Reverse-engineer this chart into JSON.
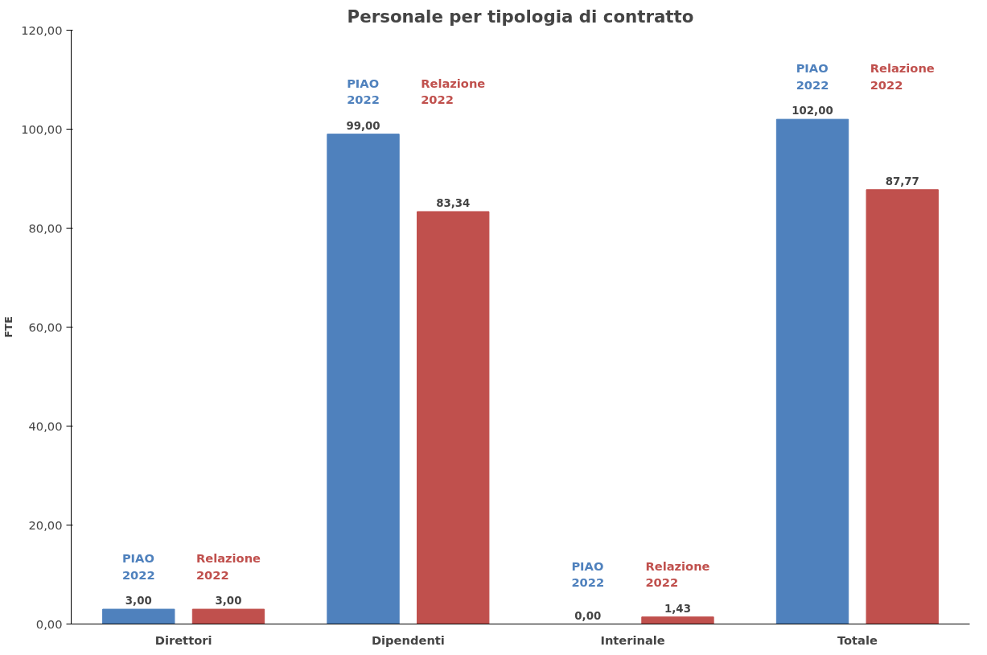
{
  "chart_data": {
    "type": "bar",
    "title": "Personale per tipologia di contratto",
    "ylabel": "FTE",
    "categories": [
      "Direttori",
      "Dipendenti",
      "Interinale",
      "Totale"
    ],
    "series": [
      {
        "name": "PIAO 2022",
        "color": "#4f81bd",
        "values": [
          3.0,
          99.0,
          0.0,
          102.0
        ],
        "value_labels": [
          "3,00",
          "99,00",
          "0,00",
          "102,00"
        ]
      },
      {
        "name": "Relazione 2022",
        "color": "#c0504d",
        "values": [
          3.0,
          83.34,
          1.43,
          87.77
        ],
        "value_labels": [
          "3,00",
          "83,34",
          "1,43",
          "87,77"
        ]
      }
    ],
    "ylim": [
      0,
      120
    ],
    "yticks": [
      {
        "value": 0,
        "label": "0,00"
      },
      {
        "value": 20,
        "label": "20,00"
      },
      {
        "value": 40,
        "label": "40,00"
      },
      {
        "value": 60,
        "label": "60,00"
      },
      {
        "value": 80,
        "label": "80,00"
      },
      {
        "value": 100,
        "label": "100,00"
      },
      {
        "value": 120,
        "label": "120,00"
      }
    ],
    "grid": false
  }
}
